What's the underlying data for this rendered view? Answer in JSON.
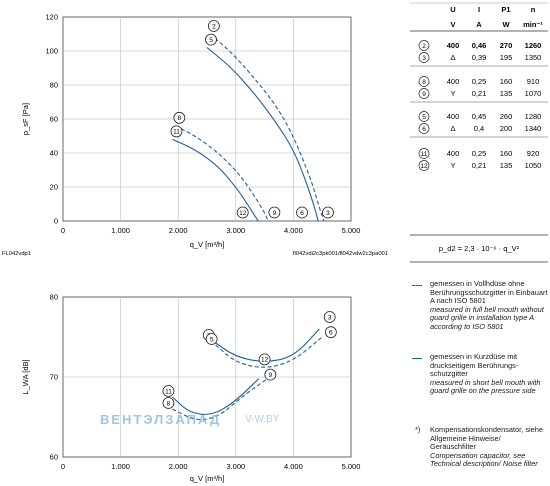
{
  "top_chart": {
    "ylabel": "p_sF [Pa]",
    "xlabel": "q_V [m³/h]",
    "footer_left": "FL042vdp1",
    "footer_right": "fl042vdi2c3pk001/fl042vdw2c3pa001"
  },
  "bottom_chart": {
    "ylabel": "L_WA [dB]",
    "xlabel": "q_V [m³/h]"
  },
  "table": {
    "headers": [
      "U",
      "I",
      "P1",
      "n"
    ],
    "units": [
      "V",
      "A",
      "W",
      "min⁻¹"
    ],
    "rows": [
      {
        "id": "2",
        "u": "400",
        "i": "0,46",
        "p": "270",
        "n": "1260",
        "bold": true
      },
      {
        "id": "3",
        "u": "Δ",
        "i": "0,39",
        "p": "195",
        "n": "1350",
        "bold": false
      },
      {
        "id": "8",
        "u": "400",
        "i": "0,25",
        "p": "160",
        "n": "910",
        "bold": false
      },
      {
        "id": "9",
        "u": "Y",
        "i": "0,21",
        "p": "135",
        "n": "1070",
        "bold": false
      },
      {
        "id": "5",
        "u": "400",
        "i": "0,45",
        "p": "260",
        "n": "1280",
        "bold": false
      },
      {
        "id": "6",
        "u": "Δ",
        "i": "0,4",
        "p": "200",
        "n": "1340",
        "bold": false
      },
      {
        "id": "11",
        "u": "400",
        "i": "0,25",
        "p": "160",
        "n": "920",
        "bold": false
      },
      {
        "id": "12",
        "u": "Y",
        "i": "0,21",
        "p": "135",
        "n": "1050",
        "bold": false
      }
    ],
    "formula": "p_d2 = 2,3 · 10⁻⁶ · q_V²"
  },
  "legend": {
    "dashed_de": "gemessen in Vollhdüse ohne Berührungsschutzgitter in Einbauart A nach ISO 5801",
    "dashed_en": "measured in full bell mouth without guard grille in installation type A according to ISO 5801",
    "solid_de": "gemessen in Kurzdüse mit druckseitigem Berührungs-schutzgitter",
    "solid_en": "measured in short bell mouth with guard grille on the pressure side",
    "note_mark": "*)",
    "note_de": "Kompensationskondensator, siehe Allgemeine Hinweise/ Geräuschfilter",
    "note_en": "Compensation capacitor, see Technical description/ Noise filter"
  },
  "watermark": {
    "brand": "ВЕНТЭЛЗАПАД",
    "url": "V-W.BY"
  },
  "colors": {
    "curve": "#1f5e9e",
    "grid": "#b0b0b0"
  },
  "chart_data": [
    {
      "type": "line",
      "xlabel": "q_V [m³/h]",
      "ylabel": "p_sF [Pa]",
      "xlim": [
        0,
        5000
      ],
      "ylim": [
        0,
        120
      ],
      "xticks": [
        "0",
        "1.000",
        "2.000",
        "3.000",
        "4.000",
        "5.000"
      ],
      "yticks": [
        "0",
        "20",
        "40",
        "60",
        "80",
        "100",
        "120"
      ],
      "grid": true,
      "series": [
        {
          "name": "2",
          "style": "dashed",
          "points": [
            [
              2550,
              110
            ],
            [
              2900,
              100
            ],
            [
              3300,
              85
            ],
            [
              3700,
              68
            ],
            [
              4000,
              50
            ],
            [
              4300,
              25
            ],
            [
              4450,
              8
            ],
            [
              4530,
              0
            ]
          ]
        },
        {
          "name": "5",
          "style": "solid",
          "points": [
            [
              2500,
              102
            ],
            [
              2900,
              91
            ],
            [
              3300,
              76
            ],
            [
              3700,
              58
            ],
            [
              4000,
              42
            ],
            [
              4200,
              25
            ],
            [
              4350,
              10
            ],
            [
              4430,
              0
            ]
          ]
        },
        {
          "name": "8",
          "style": "dashed",
          "points": [
            [
              1950,
              56
            ],
            [
              2300,
              50
            ],
            [
              2700,
              40
            ],
            [
              3050,
              28
            ],
            [
              3300,
              16
            ],
            [
              3500,
              5
            ],
            [
              3560,
              0
            ]
          ]
        },
        {
          "name": "11",
          "style": "solid",
          "points": [
            [
              1900,
              48
            ],
            [
              2300,
              42
            ],
            [
              2700,
              32
            ],
            [
              3000,
              20
            ],
            [
              3200,
              10
            ],
            [
              3350,
              2
            ],
            [
              3390,
              0
            ]
          ]
        }
      ],
      "markers": [
        {
          "id": "12",
          "x": 3120,
          "y": 5
        },
        {
          "id": "9",
          "x": 3670,
          "y": 5
        },
        {
          "id": "6",
          "x": 4150,
          "y": 5
        },
        {
          "id": "3",
          "x": 4600,
          "y": 5
        }
      ]
    },
    {
      "type": "line",
      "xlabel": "q_V [m³/h]",
      "ylabel": "L_WA [dB]",
      "xlim": [
        0,
        5000
      ],
      "ylim": [
        60,
        80
      ],
      "xticks": [
        "0",
        "1.000",
        "2.000",
        "3.000",
        "4.000",
        "5.000"
      ],
      "yticks": [
        "60",
        "70",
        "80"
      ],
      "grid": true,
      "series": [
        {
          "name": "2",
          "style": "solid",
          "points": [
            [
              2600,
              74.5
            ],
            [
              3000,
              72.5
            ],
            [
              3500,
              71.8
            ],
            [
              4000,
              72.5
            ],
            [
              4450,
              76
            ]
          ]
        },
        {
          "name": "5",
          "style": "dashed",
          "points": [
            [
              2650,
              74
            ],
            [
              3000,
              71.8
            ],
            [
              3500,
              71
            ],
            [
              4000,
              72
            ],
            [
              4500,
              75
            ]
          ]
        },
        {
          "name": "11",
          "style": "solid",
          "points": [
            [
              1900,
              67.5
            ],
            [
              2200,
              65.5
            ],
            [
              2600,
              65.2
            ],
            [
              3000,
              67
            ],
            [
              3400,
              69.8
            ]
          ]
        },
        {
          "name": "8",
          "style": "dashed",
          "points": [
            [
              1900,
              66
            ],
            [
              2300,
              64.5
            ],
            [
              2700,
              65
            ],
            [
              3100,
              67.5
            ],
            [
              3550,
              69.8
            ]
          ]
        }
      ],
      "markers": [
        {
          "id": "12",
          "x": 3500,
          "y": 72.2
        },
        {
          "id": "9",
          "x": 3600,
          "y": 70.3
        },
        {
          "id": "3",
          "x": 4630,
          "y": 77.5
        },
        {
          "id": "6",
          "x": 4650,
          "y": 75.6
        }
      ]
    }
  ]
}
